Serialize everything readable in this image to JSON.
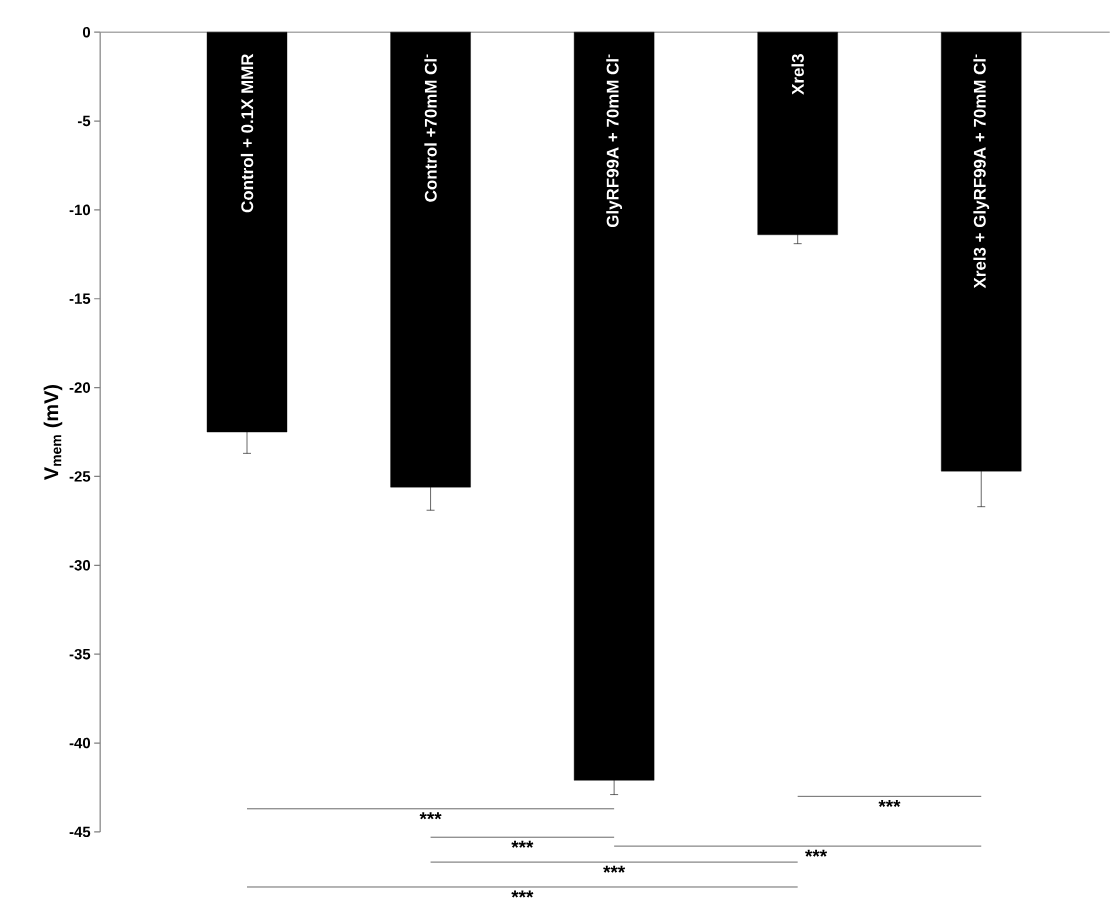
{
  "chart_data": {
    "type": "bar",
    "ylabel": "V$_{mem}$ (mV)",
    "categories": [
      "Control + 0.1X MMR",
      "Control +70mM Cl$^{-}$",
      "GlyRF99A + 70mM Cl$^{-}$",
      "Xrel3",
      "Xrel3 + GlyRF99A + 70mM Cl$^{-}$"
    ],
    "values": [
      -22.5,
      -25.6,
      -42.1,
      -11.4,
      -24.7
    ],
    "errors": [
      1.2,
      1.3,
      0.8,
      0.5,
      2.0
    ],
    "color": "#000000",
    "ylim": [
      -45,
      0
    ],
    "yticks": [
      -45,
      -40,
      -35,
      -30,
      -25,
      -20,
      -15,
      -10,
      -5,
      0
    ],
    "annotations": [
      "***",
      "***",
      "***",
      "***",
      "***",
      "***"
    ]
  }
}
